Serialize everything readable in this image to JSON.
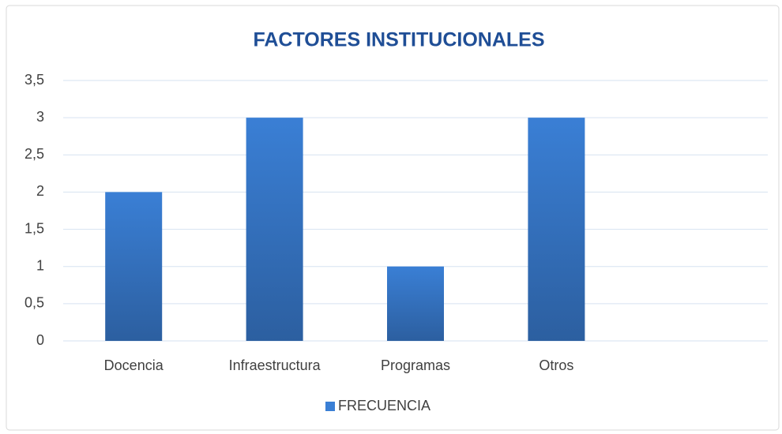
{
  "chart_data": {
    "type": "bar",
    "title": "FACTORES INSTITUCIONALES",
    "categories": [
      "Docencia",
      "Infraestructura",
      "Programas",
      "Otros",
      null
    ],
    "series": [
      {
        "name": "FRECUENCIA",
        "color": "#3a7fd5",
        "values": [
          2,
          3,
          1,
          3,
          null
        ]
      }
    ],
    "ylim": [
      0,
      3.5
    ],
    "yticks": [
      0,
      {
        "value": 0.5,
        "label": "0,5"
      },
      1,
      {
        "value": 1.5,
        "label": "1,5"
      },
      2,
      {
        "value": 2.5,
        "label": "2,5"
      },
      3,
      {
        "value": 3.5,
        "label": "3,5"
      }
    ],
    "grid": true,
    "legend": "bottom"
  }
}
